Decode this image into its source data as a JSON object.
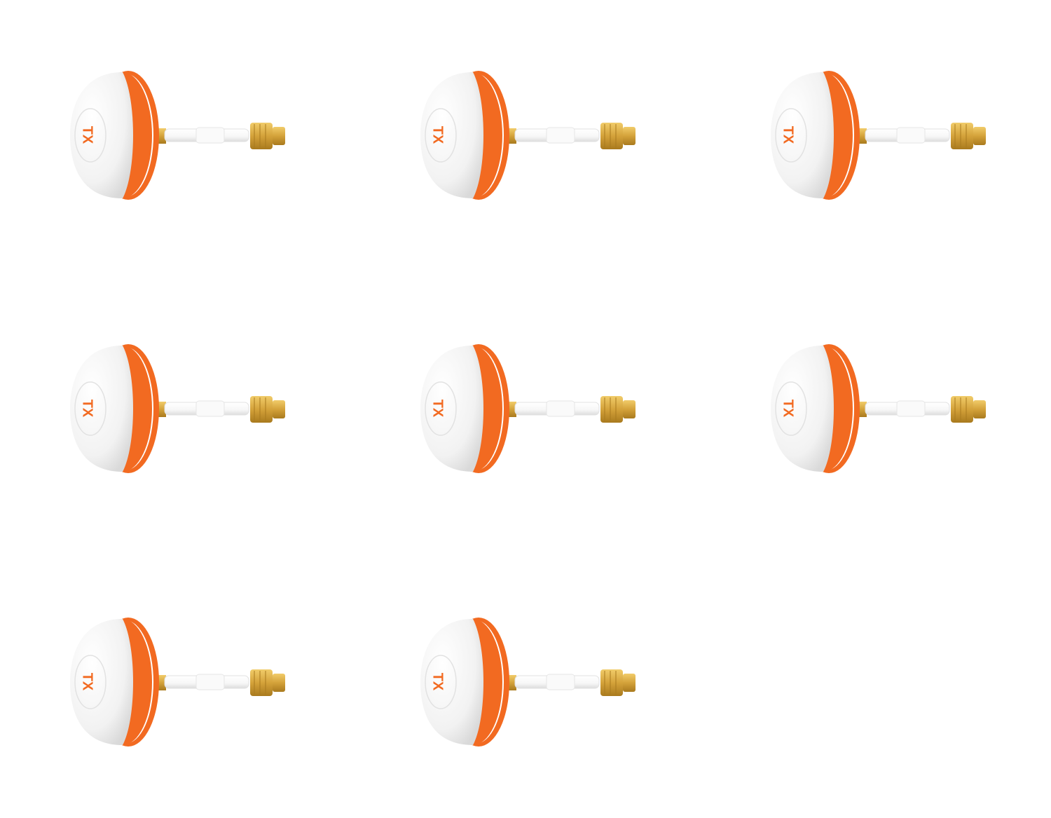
{
  "product": {
    "label": "TX",
    "colors": {
      "body": "#f2f2f2",
      "body_shadow": "#d9d9d9",
      "ring": "#f26a21",
      "cable": "#f7f7f7",
      "connector": "#d4a23a",
      "connector_dark": "#a97a1e",
      "text": "#f26a21"
    }
  },
  "grid": {
    "items": [
      {
        "label": "TX"
      },
      {
        "label": "TX"
      },
      {
        "label": "TX"
      },
      {
        "label": "TX"
      },
      {
        "label": "TX"
      },
      {
        "label": "TX"
      },
      {
        "label": "TX"
      },
      {
        "label": "TX"
      }
    ]
  }
}
